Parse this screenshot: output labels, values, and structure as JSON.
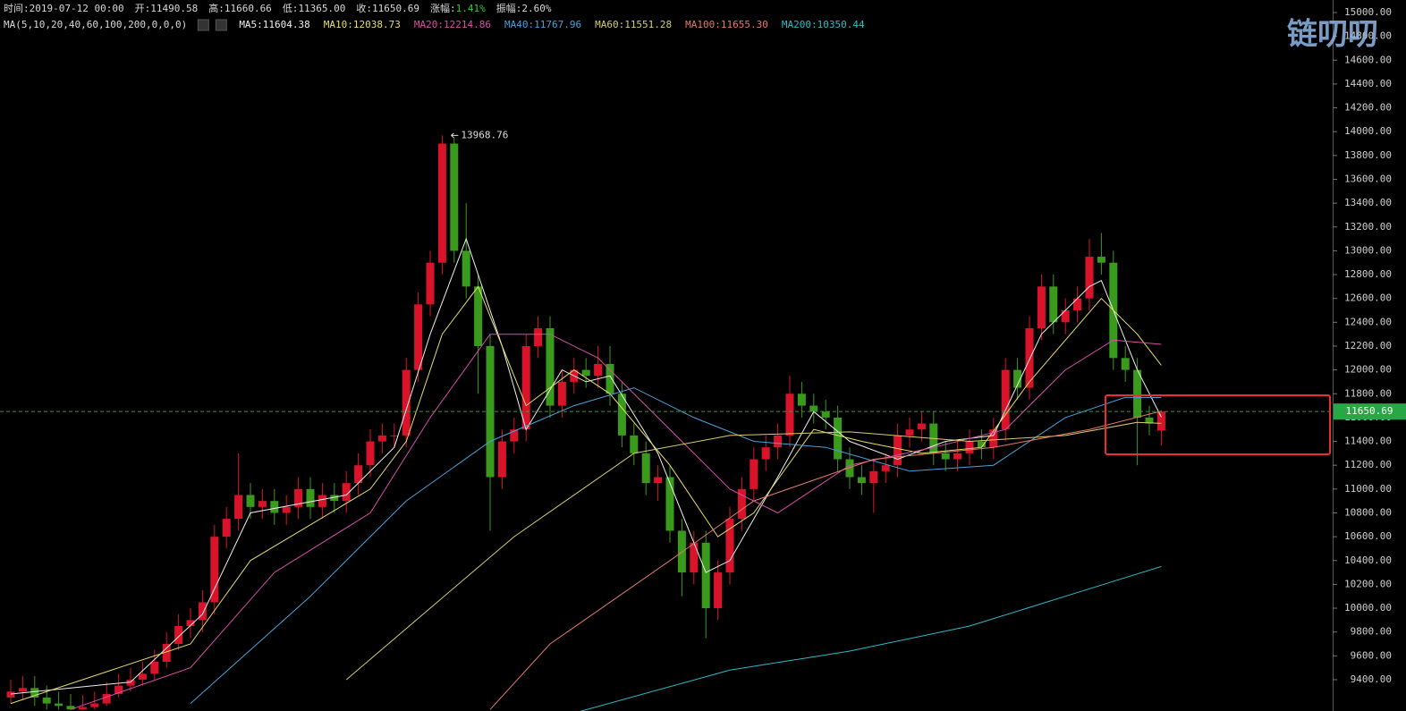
{
  "chart_data": {
    "type": "candlestick",
    "info": [
      {
        "label": "时间:",
        "value": "2019-07-12 00:00"
      },
      {
        "label": "开:",
        "value": "11490.58"
      },
      {
        "label": "高:",
        "value": "11660.66"
      },
      {
        "label": "低:",
        "value": "11365.00"
      },
      {
        "label": "收:",
        "value": "11650.69"
      },
      {
        "label": "涨幅:",
        "value": "1.41%",
        "color": "#3cc43c"
      },
      {
        "label": "振幅:",
        "value": "2.60%"
      }
    ],
    "indicator": "MA(5,10,20,40,60,100,200,0,0,0)",
    "watermark": "链叨叨",
    "up_color": "#d9132a",
    "down_color": "#3a9a1c",
    "ylim": [
      9137,
      15105
    ],
    "yticks": [
      {
        "value": 9400,
        "label": "9400.00"
      },
      {
        "value": 9600,
        "label": "9600.00"
      },
      {
        "value": 9800,
        "label": "9800.00"
      },
      {
        "value": 10000,
        "label": "10000.00"
      },
      {
        "value": 10200,
        "label": "10200.00"
      },
      {
        "value": 10400,
        "label": "10400.00"
      },
      {
        "value": 10600,
        "label": "10600.00"
      },
      {
        "value": 10800,
        "label": "10800.00"
      },
      {
        "value": 11000,
        "label": "11000.00"
      },
      {
        "value": 11200,
        "label": "11200.00"
      },
      {
        "value": 11400,
        "label": "11400.00"
      },
      {
        "value": 11600,
        "label": "11600.00"
      },
      {
        "value": 11800,
        "label": "11800.00"
      },
      {
        "value": 12000,
        "label": "12000.00"
      },
      {
        "value": 12200,
        "label": "12200.00"
      },
      {
        "value": 12400,
        "label": "12400.00"
      },
      {
        "value": 12600,
        "label": "12600.00"
      },
      {
        "value": 12800,
        "label": "12800.00"
      },
      {
        "value": 13000,
        "label": "13000.00"
      },
      {
        "value": 13200,
        "label": "13200.00"
      },
      {
        "value": 13400,
        "label": "13400.00"
      },
      {
        "value": 13600,
        "label": "13600.00"
      },
      {
        "value": 13800,
        "label": "13800.00"
      },
      {
        "value": 14000,
        "label": "14000.00"
      },
      {
        "value": 14200,
        "label": "14200.00"
      },
      {
        "value": 14400,
        "label": "14400.00"
      },
      {
        "value": 14600,
        "label": "14600.00"
      },
      {
        "value": 14800,
        "label": "14800.00"
      },
      {
        "value": 15000,
        "label": "15000.00"
      }
    ],
    "open": [
      9250,
      9300,
      9330,
      9250,
      9200,
      9180,
      9150,
      9170,
      9200,
      9280,
      9350,
      9400,
      9450,
      9550,
      9700,
      9850,
      9900,
      10050,
      10600,
      10750,
      10950,
      10850,
      10900,
      10800,
      10850,
      11000,
      10850,
      10950,
      10900,
      11050,
      11200,
      11400,
      11450,
      11450,
      12000,
      12550,
      12900,
      13900,
      13000,
      12700,
      12200,
      11100,
      11400,
      11500,
      12200,
      12350,
      11700,
      11900,
      12000,
      11950,
      12050,
      11800,
      11450,
      11300,
      11050,
      11100,
      10650,
      10300,
      10550,
      10000,
      10300,
      10750,
      11000,
      11250,
      11350,
      11450,
      11800,
      11700,
      11650,
      11600,
      11250,
      11100,
      11050,
      11150,
      11200,
      11450,
      11500,
      11550,
      11300,
      11250,
      11300,
      11400,
      11350,
      11500,
      12000,
      11850,
      12350,
      12700,
      12400,
      12500,
      12600,
      12950,
      12900,
      12100,
      12000,
      11600,
      11490.58
    ],
    "high": [
      9400,
      9430,
      9430,
      9350,
      9300,
      9280,
      9270,
      9300,
      9380,
      9450,
      9500,
      9550,
      9650,
      9800,
      9950,
      10000,
      10150,
      10700,
      10850,
      11300,
      11050,
      11000,
      11000,
      10950,
      11100,
      11100,
      11050,
      11050,
      11150,
      11300,
      11500,
      11550,
      11550,
      12100,
      12650,
      13000,
      13968.76,
      13950,
      13400,
      12800,
      12300,
      11500,
      11600,
      12300,
      12450,
      12450,
      12000,
      12100,
      12100,
      12200,
      12200,
      11900,
      11550,
      11400,
      11200,
      11200,
      10750,
      10650,
      10650,
      10400,
      10850,
      11100,
      11350,
      11450,
      11550,
      11950,
      11900,
      11800,
      11750,
      11700,
      11350,
      11200,
      11250,
      11300,
      11550,
      11600,
      11650,
      11650,
      11400,
      11400,
      11500,
      11500,
      11600,
      12100,
      12100,
      12450,
      12800,
      12800,
      12600,
      12700,
      13100,
      13150,
      13000,
      12200,
      12100,
      11700,
      11660.66
    ],
    "low": [
      9200,
      9230,
      9180,
      9150,
      9150,
      9145,
      9145,
      9150,
      9180,
      9250,
      9300,
      9350,
      9400,
      9500,
      9650,
      9750,
      9800,
      9950,
      10500,
      10650,
      10750,
      10750,
      10700,
      10700,
      10750,
      10750,
      10750,
      10800,
      10800,
      10950,
      11100,
      11300,
      11350,
      11350,
      11900,
      12450,
      12800,
      12900,
      12600,
      11800,
      10650,
      11000,
      11300,
      11400,
      12100,
      11600,
      11600,
      11800,
      11850,
      11850,
      11700,
      11350,
      11200,
      10950,
      10900,
      10550,
      10100,
      10200,
      9750,
      9900,
      10200,
      10650,
      10900,
      11150,
      11250,
      11350,
      11600,
      11550,
      11500,
      11150,
      11000,
      10950,
      10800,
      11050,
      11100,
      11350,
      11400,
      11200,
      11150,
      11150,
      11200,
      11250,
      11250,
      11400,
      11750,
      11750,
      12250,
      12300,
      12300,
      12400,
      12500,
      12800,
      12000,
      11900,
      11200,
      11450,
      11365
    ],
    "close": [
      9300,
      9330,
      9250,
      9200,
      9180,
      9150,
      9170,
      9200,
      9280,
      9350,
      9400,
      9450,
      9550,
      9700,
      9850,
      9900,
      10050,
      10600,
      10750,
      10950,
      10850,
      10900,
      10800,
      10850,
      11000,
      10850,
      10950,
      10900,
      11050,
      11200,
      11400,
      11450,
      11450,
      12000,
      12550,
      12900,
      13900,
      13000,
      12700,
      12200,
      11100,
      11400,
      11500,
      12200,
      12350,
      11700,
      11900,
      12000,
      11950,
      12050,
      11800,
      11450,
      11300,
      11050,
      11100,
      10650,
      10300,
      10550,
      10000,
      10300,
      10750,
      11000,
      11250,
      11350,
      11450,
      11800,
      11700,
      11650,
      11600,
      11250,
      11100,
      11050,
      11150,
      11200,
      11450,
      11500,
      11550,
      11300,
      11250,
      11300,
      11400,
      11350,
      11500,
      12000,
      11850,
      12350,
      12700,
      12400,
      12500,
      12600,
      12950,
      12900,
      12100,
      12000,
      11600,
      11550,
      11650.69
    ],
    "series": [
      {
        "label": "MA5:11604.38",
        "color": "#eeeeee",
        "x": [
          0,
          10,
          16,
          20,
          28,
          32,
          35,
          38,
          41,
          43,
          46,
          48,
          50,
          54,
          58,
          60,
          64,
          67,
          70,
          74,
          78,
          82,
          86,
          90,
          91,
          94,
          96
        ],
        "values": [
          9280,
          9380,
          9950,
          10800,
          10950,
          11350,
          12300,
          13100,
          12200,
          11500,
          12000,
          11900,
          11950,
          11300,
          10300,
          10400,
          11100,
          11650,
          11400,
          11250,
          11400,
          11450,
          12300,
          12700,
          12750,
          12000,
          11604
        ]
      },
      {
        "label": "MA10:12038.73",
        "color": "#e8dc6e",
        "x": [
          0,
          15,
          20,
          30,
          33,
          36,
          39,
          43,
          47,
          50,
          55,
          59,
          62,
          67,
          71,
          76,
          81,
          85,
          91,
          94,
          96
        ],
        "values": [
          9200,
          9700,
          10400,
          11000,
          11400,
          12300,
          12700,
          11700,
          12000,
          11800,
          11200,
          10600,
          10800,
          11500,
          11400,
          11300,
          11350,
          11900,
          12600,
          12300,
          12039
        ]
      },
      {
        "label": "MA20:12214.86",
        "color": "#d64fa8",
        "x": [
          5,
          15,
          22,
          30,
          35,
          40,
          45,
          49,
          54,
          60,
          64,
          70,
          77,
          83,
          88,
          92,
          96
        ],
        "values": [
          9150,
          9500,
          10300,
          10800,
          11600,
          12300,
          12300,
          12100,
          11600,
          11000,
          10800,
          11200,
          11350,
          11500,
          12000,
          12250,
          12215
        ]
      },
      {
        "label": "MA40:11767.96",
        "color": "#4ba0da",
        "x": [
          15,
          25,
          33,
          40,
          47,
          52,
          57,
          62,
          68,
          75,
          82,
          88,
          93,
          96
        ],
        "values": [
          9200,
          10100,
          10900,
          11400,
          11700,
          11850,
          11600,
          11400,
          11350,
          11150,
          11200,
          11600,
          11770,
          11768
        ]
      },
      {
        "label": "MA60:11551.28",
        "color": "#d8ca72",
        "x": [
          28,
          35,
          42,
          52,
          60,
          70,
          80,
          88,
          94,
          96
        ],
        "values": [
          9400,
          10000,
          10600,
          11300,
          11450,
          11480,
          11400,
          11450,
          11560,
          11551
        ]
      },
      {
        "label": "MA100:11655.30",
        "color": "#e27a6b",
        "x": [
          40,
          45,
          55,
          62,
          72,
          82,
          90,
          96
        ],
        "values": [
          9150,
          9700,
          10400,
          10900,
          11250,
          11350,
          11500,
          11655
        ]
      },
      {
        "label": "MA200:10350.44",
        "color": "#2fbac9",
        "x": [
          47,
          60,
          70,
          80,
          88,
          96
        ],
        "values": [
          9120,
          9480,
          9640,
          9850,
          10100,
          10350
        ]
      }
    ]
  }
}
